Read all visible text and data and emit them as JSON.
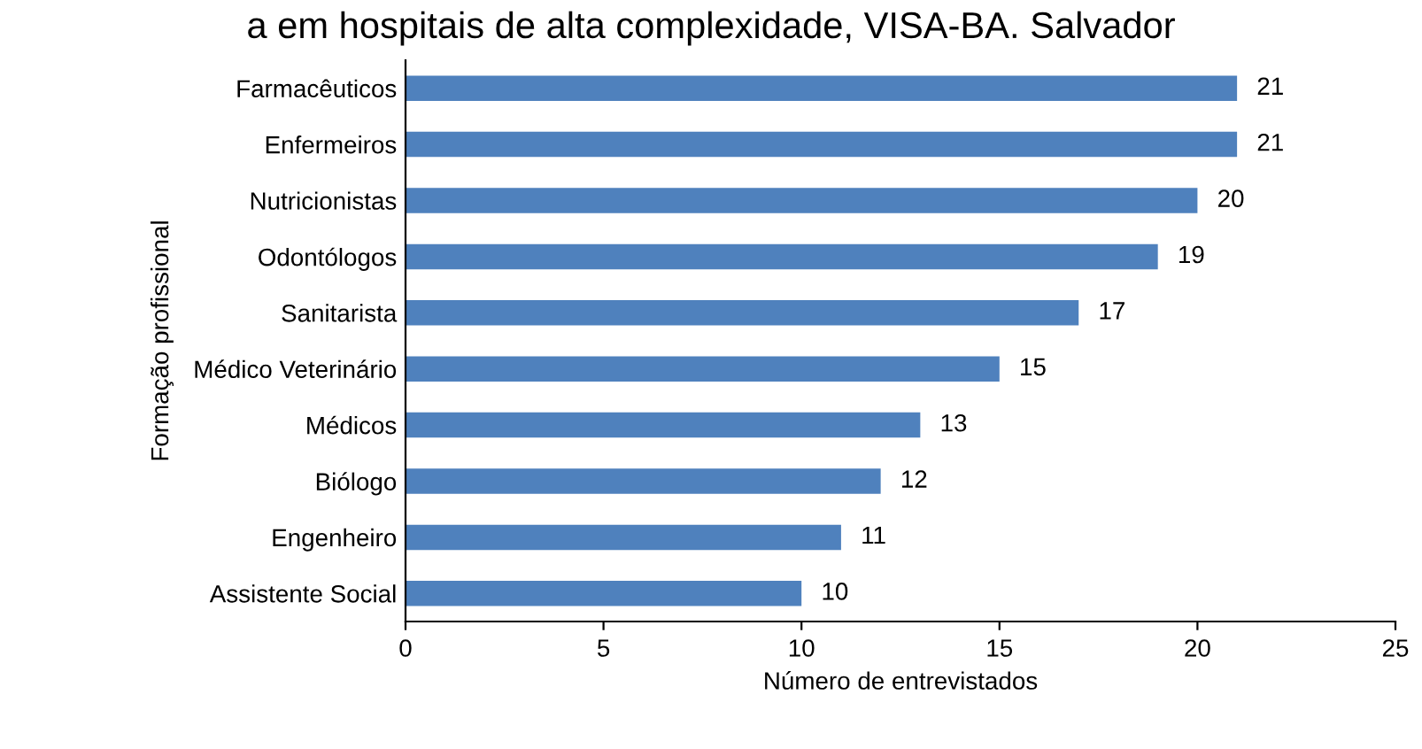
{
  "chart_data": {
    "type": "bar",
    "orientation": "horizontal",
    "title": "a em hospitais de alta complexidade, VISA-BA. Salvador",
    "categories": [
      "Farmacêuticos",
      "Enfermeiros",
      "Nutricionistas",
      "Odontólogos",
      "Sanitarista",
      "Médico Veterinário",
      "Médicos",
      "Biólogo",
      "Engenheiro",
      "Assistente Social"
    ],
    "values": [
      21,
      21,
      20,
      19,
      17,
      15,
      13,
      12,
      11,
      10
    ],
    "color": "#4f81bd",
    "data_labels": true,
    "xlim": [
      0,
      25
    ],
    "xticks": [
      0,
      5,
      10,
      15,
      20,
      25
    ],
    "xlabel": "Número de entrevistados",
    "ylabel": "Formação profissional",
    "grid": false,
    "legend": false
  }
}
